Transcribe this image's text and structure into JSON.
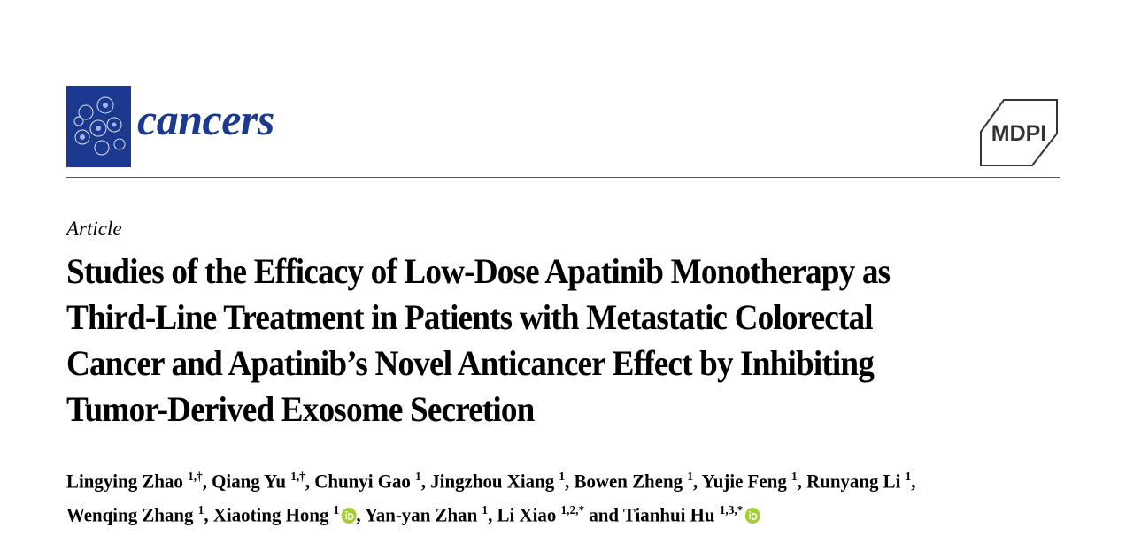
{
  "header": {
    "journal": "cancers",
    "publisher": "MDPI"
  },
  "article_type": "Article",
  "title_lines": [
    "Studies of the Efficacy of Low-Dose Apatinib Monotherapy as",
    "Third-Line Treatment in Patients with Metastatic Colorectal",
    "Cancer and Apatinib’s Novel Anticancer Effect by Inhibiting",
    "Tumor-Derived Exosome Secretion"
  ],
  "authors": {
    "rows": [
      [
        {
          "name": "Lingying Zhao",
          "sup": "1,†",
          "sep": ", "
        },
        {
          "name": "Qiang Yu",
          "sup": "1,†",
          "sep": ", "
        },
        {
          "name": "Chunyi Gao",
          "sup": "1",
          "sep": ", "
        },
        {
          "name": "Jingzhou Xiang",
          "sup": "1",
          "sep": ", "
        },
        {
          "name": "Bowen Zheng",
          "sup": "1",
          "sep": ", "
        },
        {
          "name": "Yujie Feng",
          "sup": "1",
          "sep": ", "
        },
        {
          "name": "Runyang Li",
          "sup": "1",
          "sep": ","
        }
      ],
      [
        {
          "name": "Wenqing Zhang",
          "sup": "1",
          "sep": ", "
        },
        {
          "name": "Xiaoting Hong",
          "sup": "1",
          "orcid": true,
          "sep": ", "
        },
        {
          "name": "Yan-yan Zhan",
          "sup": "1",
          "sep": ", "
        },
        {
          "name": "Li Xiao",
          "sup": "1,2,*",
          "sep": " and "
        },
        {
          "name": "Tianhui Hu",
          "sup": "1,3,*",
          "orcid": true
        }
      ]
    ]
  }
}
